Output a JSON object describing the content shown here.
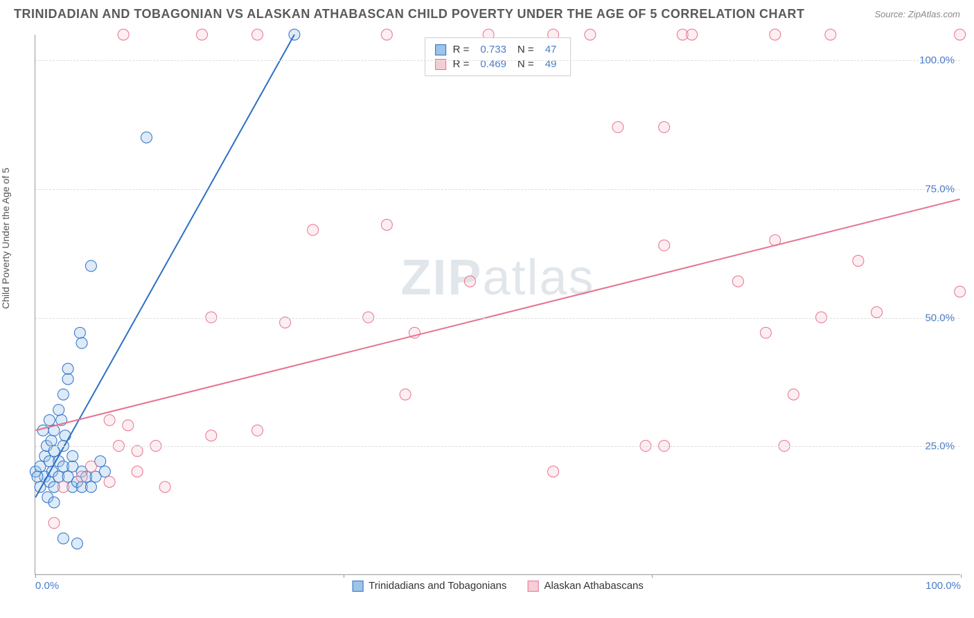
{
  "title": "TRINIDADIAN AND TOBAGONIAN VS ALASKAN ATHABASCAN CHILD POVERTY UNDER THE AGE OF 5 CORRELATION CHART",
  "source": "Source: ZipAtlas.com",
  "y_axis_label": "Child Poverty Under the Age of 5",
  "watermark_zip": "ZIP",
  "watermark_atlas": "atlas",
  "chart": {
    "type": "scatter",
    "background_color": "#ffffff",
    "grid_color": "#dddddd",
    "axis_color": "#999999",
    "xlim": [
      0,
      100
    ],
    "ylim": [
      0,
      105
    ],
    "x_ticks": [
      0,
      33.3,
      66.6,
      100
    ],
    "x_tick_labels": [
      "0.0%",
      "",
      "",
      "100.0%"
    ],
    "y_ticks": [
      25,
      50,
      75,
      100
    ],
    "y_tick_labels": [
      "25.0%",
      "50.0%",
      "75.0%",
      "100.0%"
    ],
    "tick_label_color": "#4a7bc8",
    "tick_label_fontsize": 15,
    "marker_radius": 8,
    "marker_opacity": 0.35,
    "trend_line_width": 2,
    "series": [
      {
        "name": "Trinidadians and Tobagonians",
        "fill_color": "#9ec3e8",
        "stroke_color": "#2b6fc5",
        "line_color": "#2b6fc5",
        "R": "0.733",
        "N": "47",
        "trend_start": [
          0,
          15
        ],
        "trend_end": [
          28,
          105
        ],
        "points": [
          [
            0,
            20
          ],
          [
            0.5,
            21
          ],
          [
            1,
            19
          ],
          [
            1,
            23
          ],
          [
            1.2,
            25
          ],
          [
            1.5,
            18
          ],
          [
            1.5,
            22
          ],
          [
            2,
            24
          ],
          [
            0.8,
            28
          ],
          [
            0.5,
            17
          ],
          [
            1.8,
            20
          ],
          [
            2,
            17
          ],
          [
            2.5,
            19
          ],
          [
            2.5,
            22
          ],
          [
            3,
            21
          ],
          [
            3,
            25
          ],
          [
            2,
            28
          ],
          [
            1.3,
            15
          ],
          [
            3.5,
            19
          ],
          [
            4,
            21
          ],
          [
            4,
            17
          ],
          [
            4.5,
            18
          ],
          [
            5,
            17
          ],
          [
            5,
            20
          ],
          [
            5.5,
            19
          ],
          [
            6,
            17
          ],
          [
            1.5,
            30
          ],
          [
            2.5,
            32
          ],
          [
            3,
            35
          ],
          [
            3.5,
            38
          ],
          [
            3.5,
            40
          ],
          [
            5,
            45
          ],
          [
            4.8,
            47
          ],
          [
            3.2,
            27
          ],
          [
            2,
            14
          ],
          [
            3,
            7
          ],
          [
            4.5,
            6
          ],
          [
            12,
            85
          ],
          [
            6,
            60
          ],
          [
            28,
            105
          ],
          [
            6.5,
            19
          ],
          [
            7,
            22
          ],
          [
            7.5,
            20
          ],
          [
            4,
            23
          ],
          [
            0.2,
            19
          ],
          [
            1.7,
            26
          ],
          [
            2.8,
            30
          ]
        ]
      },
      {
        "name": "Alaskan Athabascans",
        "fill_color": "#f5cdd6",
        "stroke_color": "#e8718e",
        "line_color": "#e8718e",
        "R": "0.469",
        "N": "49",
        "trend_start": [
          0,
          28
        ],
        "trend_end": [
          100,
          73
        ],
        "points": [
          [
            2,
            10
          ],
          [
            3,
            17
          ],
          [
            5,
            19
          ],
          [
            6,
            21
          ],
          [
            8,
            18
          ],
          [
            9,
            25
          ],
          [
            10,
            29
          ],
          [
            11,
            24
          ],
          [
            8,
            30
          ],
          [
            11,
            20
          ],
          [
            13,
            25
          ],
          [
            14,
            17
          ],
          [
            9.5,
            105
          ],
          [
            18,
            105
          ],
          [
            19,
            27
          ],
          [
            19,
            50
          ],
          [
            24,
            28
          ],
          [
            24,
            105
          ],
          [
            27,
            49
          ],
          [
            30,
            67
          ],
          [
            36,
            50
          ],
          [
            38,
            68
          ],
          [
            38,
            105
          ],
          [
            40,
            35
          ],
          [
            41,
            47
          ],
          [
            47,
            57
          ],
          [
            49,
            105
          ],
          [
            56,
            20
          ],
          [
            56,
            105
          ],
          [
            60,
            105
          ],
          [
            63,
            87
          ],
          [
            66,
            25
          ],
          [
            68,
            25
          ],
          [
            68,
            64
          ],
          [
            68,
            87
          ],
          [
            70,
            105
          ],
          [
            71,
            105
          ],
          [
            76,
            57
          ],
          [
            79,
            47
          ],
          [
            80,
            65
          ],
          [
            80,
            105
          ],
          [
            81,
            25
          ],
          [
            82,
            35
          ],
          [
            85,
            50
          ],
          [
            86,
            105
          ],
          [
            89,
            61
          ],
          [
            91,
            51
          ],
          [
            100,
            55
          ],
          [
            100,
            105
          ]
        ]
      }
    ]
  },
  "legend_top_labels": {
    "R": "R =",
    "N": "N ="
  },
  "legend_bottom": [
    "Trinidadians and Tobagonians",
    "Alaskan Athabascans"
  ]
}
